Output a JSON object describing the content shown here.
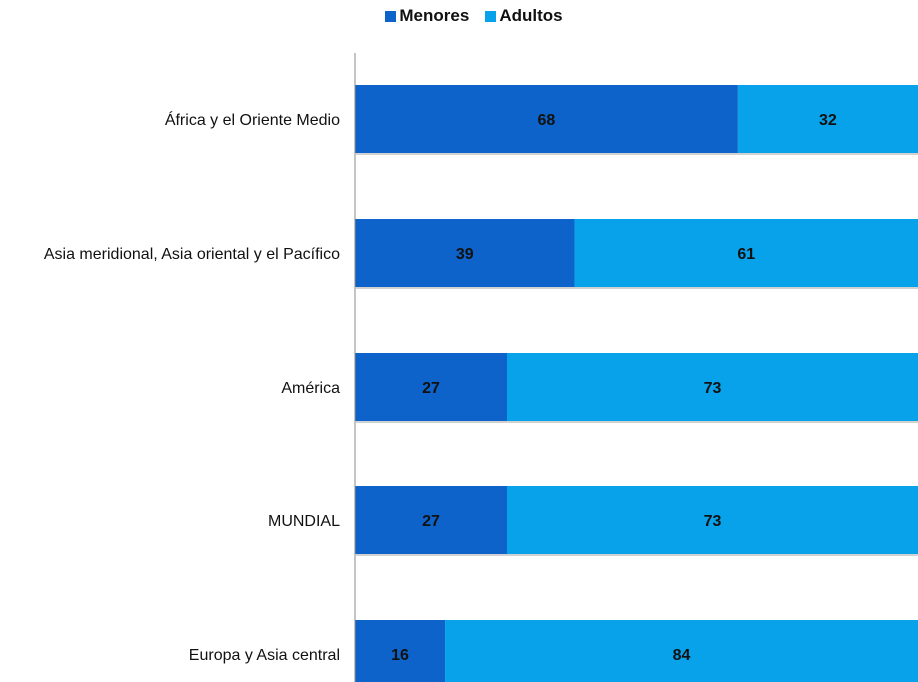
{
  "chart_data": {
    "type": "bar",
    "orientation": "horizontal",
    "stacked": true,
    "categories": [
      "África y el Oriente Medio",
      "Asia meridional, Asia oriental y el Pacífico",
      "América",
      "MUNDIAL",
      "Europa y Asia central"
    ],
    "series": [
      {
        "name": "Menores",
        "values": [
          68,
          39,
          27,
          27,
          16
        ],
        "color": "#0d63c9"
      },
      {
        "name": "Adultos",
        "values": [
          32,
          61,
          73,
          73,
          84
        ],
        "color": "#07a2ea"
      }
    ],
    "xlim": [
      0,
      100
    ],
    "grid": false,
    "legend_position": "top"
  }
}
